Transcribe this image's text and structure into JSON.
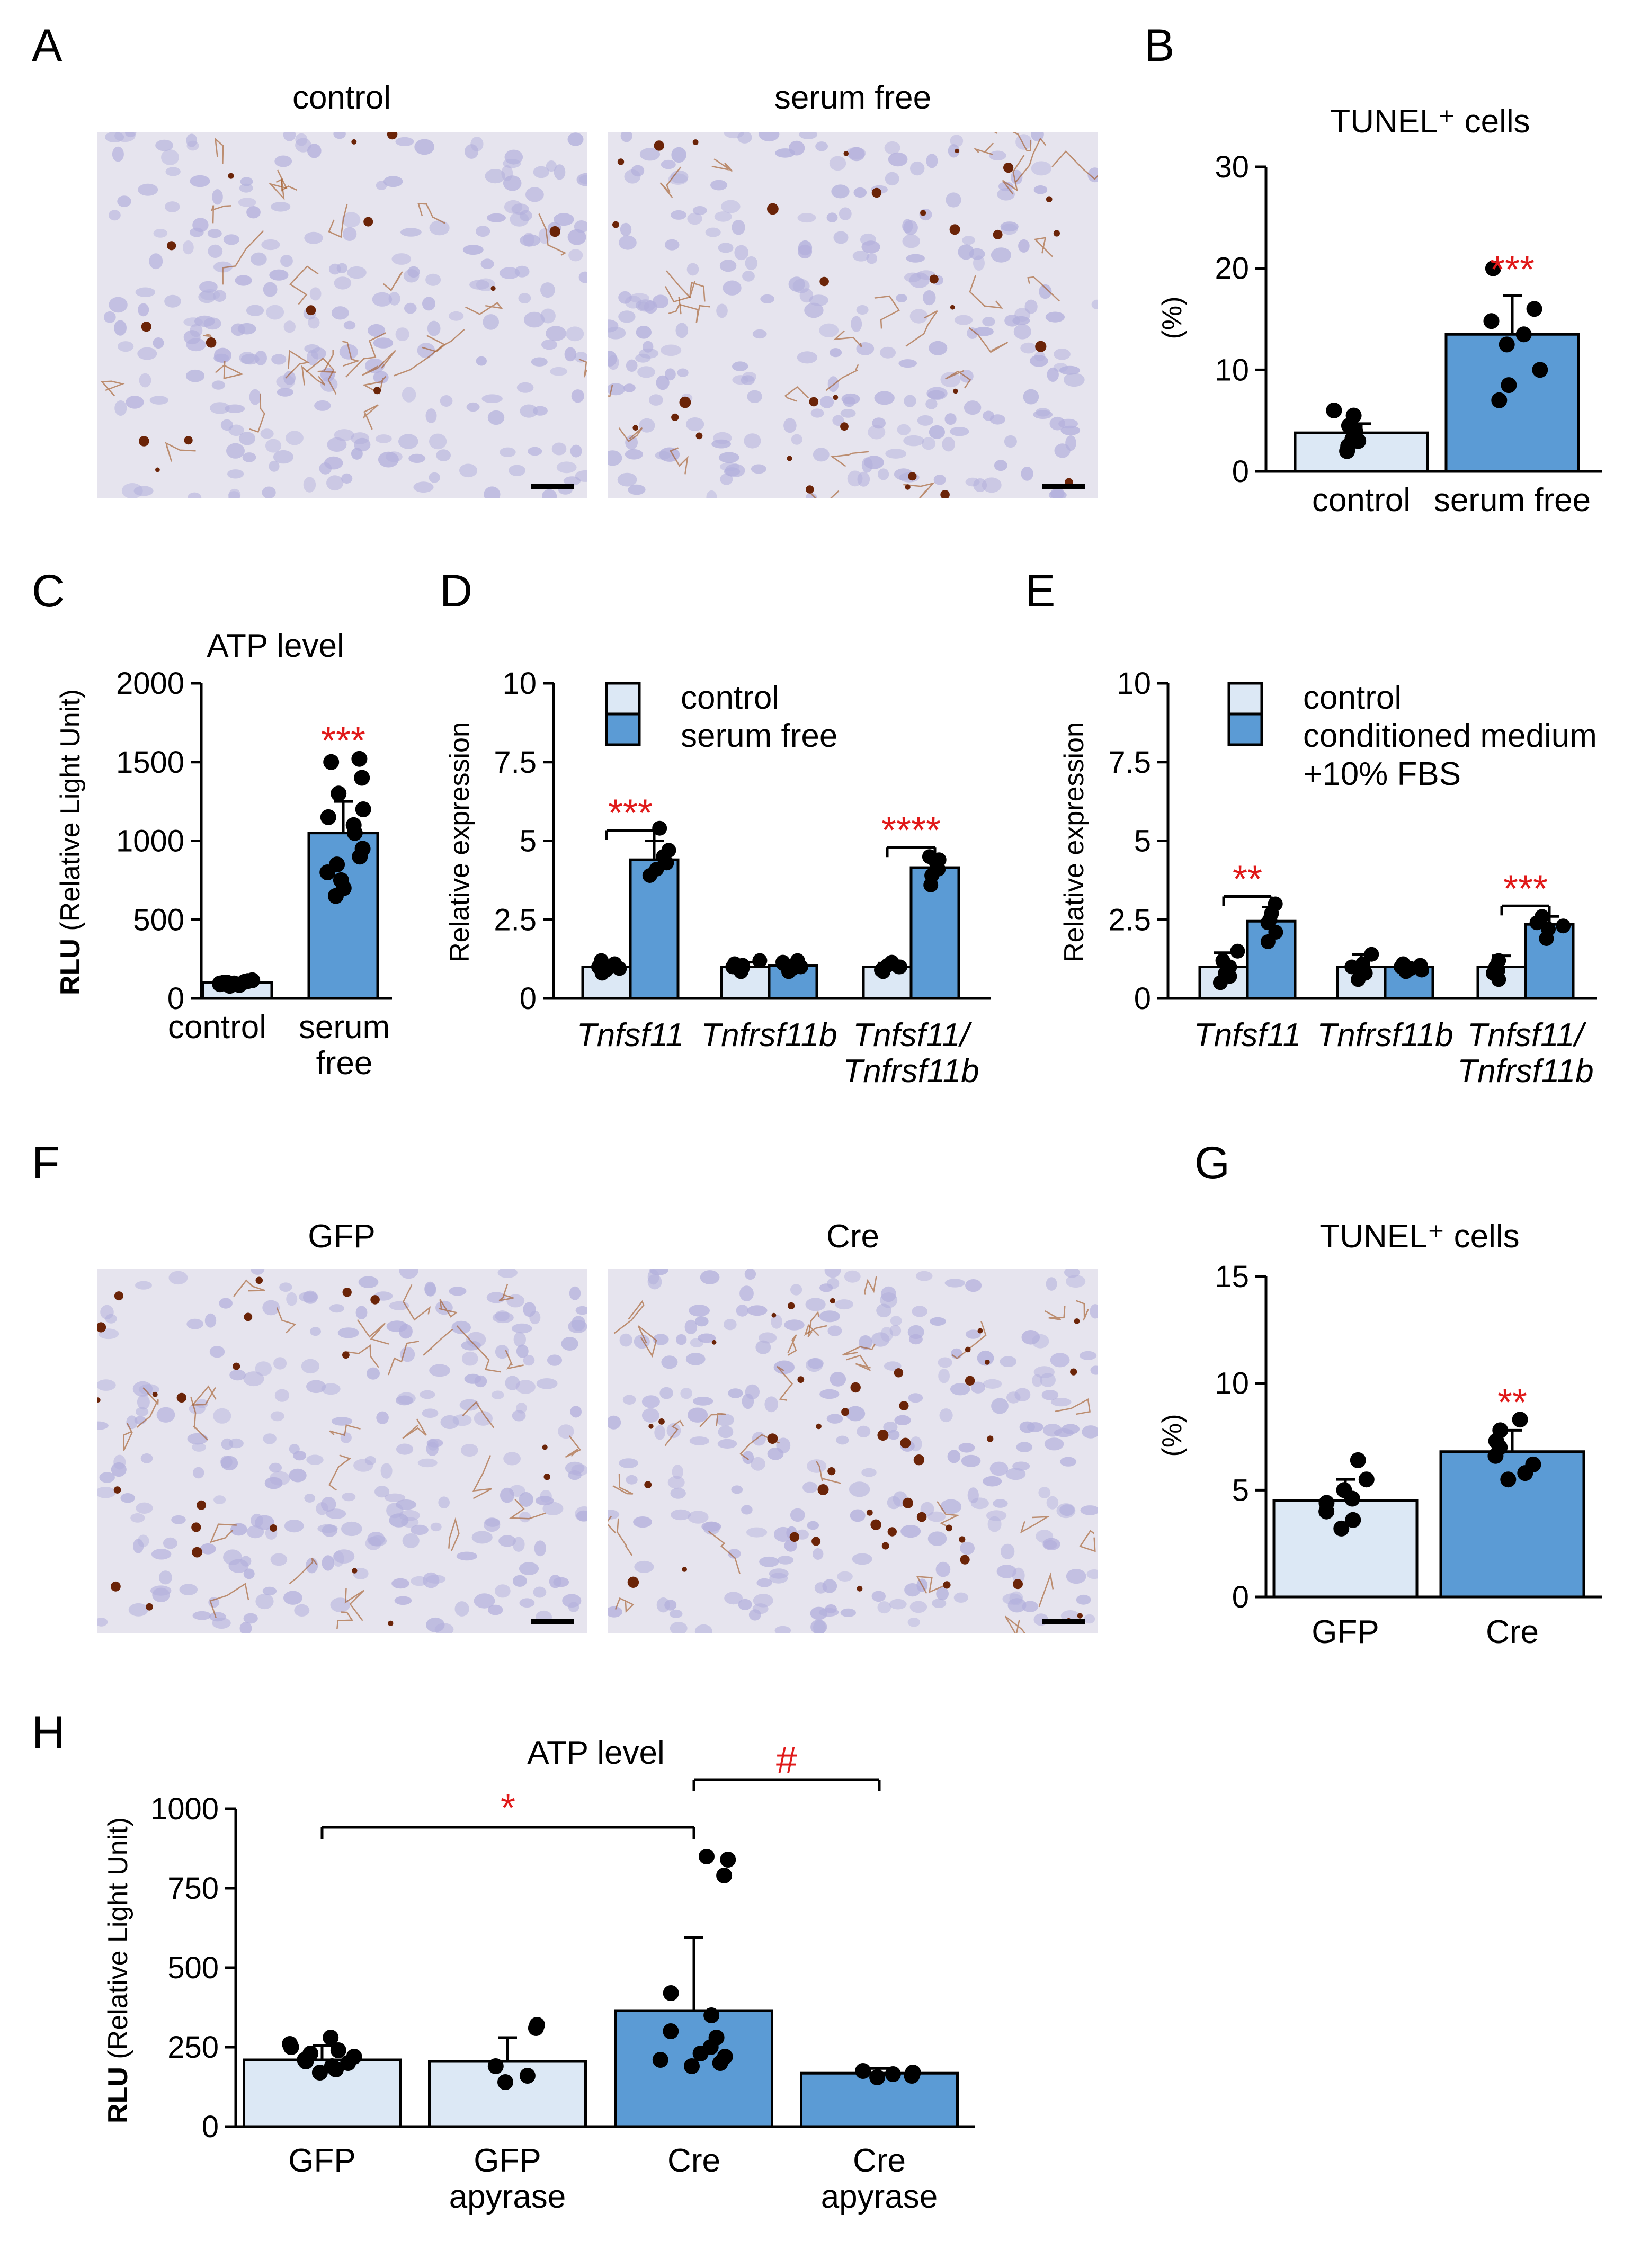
{
  "colors": {
    "control_fill": "#dce8f5",
    "treated_fill": "#5b9bd5",
    "bar_edge": "#000000",
    "dot": "#000000",
    "significance": "#e01a1a",
    "tissue_background": "#e6e4ee",
    "nucleus": "#b3b0dc",
    "stain_brown": "#a0531c",
    "stain_dark": "#6b2408"
  },
  "panels": {
    "A": {
      "letter": "A",
      "labels": [
        "control",
        "serum free"
      ]
    },
    "B": {
      "letter": "B"
    },
    "C": {
      "letter": "C"
    },
    "D": {
      "letter": "D"
    },
    "E": {
      "letter": "E"
    },
    "F": {
      "letter": "F",
      "labels": [
        "GFP",
        "Cre"
      ]
    },
    "G": {
      "letter": "G"
    },
    "H": {
      "letter": "H"
    }
  },
  "chart_data": [
    {
      "panel": "B",
      "type": "bar",
      "title": "TUNEL⁺ cells",
      "ylabel": "(%)",
      "ylim": [
        0,
        30
      ],
      "yticks": [
        "0",
        "10",
        "20",
        "30"
      ],
      "categories": [
        "control",
        "serum free"
      ],
      "values": [
        3.8,
        13.5
      ],
      "errors": [
        0.9,
        3.8
      ],
      "points": [
        [
          2.5,
          3.2,
          4.5,
          5.5,
          6.0,
          4.0,
          3.0,
          2.0
        ],
        [
          7.0,
          8.5,
          10.0,
          12.5,
          13.5,
          14.8,
          16.0,
          20.0
        ]
      ],
      "significance": "***"
    },
    {
      "panel": "C",
      "type": "bar",
      "title": "ATP level",
      "ylabel": [
        "RLU",
        " (Relative Light Unit)"
      ],
      "ylim": [
        0,
        2000
      ],
      "yticks": [
        "0",
        "500",
        "1000",
        "1500",
        "2000"
      ],
      "categories": [
        "control",
        "serum free"
      ],
      "category_lines": [
        [
          "control"
        ],
        [
          "serum",
          "free"
        ]
      ],
      "values": [
        100,
        1050
      ],
      "errors": [
        15,
        200
      ],
      "points": [
        [
          80,
          95,
          110,
          90,
          105,
          100,
          85,
          115,
          100,
          95
        ],
        [
          650,
          700,
          750,
          800,
          850,
          900,
          950,
          1050,
          1100,
          1150,
          1200,
          1300,
          1400,
          1500,
          1520
        ]
      ],
      "significance": "***"
    },
    {
      "panel": "D",
      "type": "bar",
      "ylabel": "Relative expression",
      "ylim": [
        0,
        10
      ],
      "yticks": [
        "0",
        "2.5",
        "5",
        "7.5",
        "10"
      ],
      "categories": [
        "Tnfsf11",
        "Tnfrsf11b",
        "Tnfsf11/Tnfrsf11b"
      ],
      "category_lines": [
        [
          "Tnfsf11"
        ],
        [
          "Tnfrsf11b"
        ],
        [
          "Tnfsf11/",
          "Tnfrsf11b"
        ]
      ],
      "legend": [
        "control",
        "serum free"
      ],
      "series": [
        {
          "name": "control",
          "values": [
            1.0,
            1.0,
            1.0
          ],
          "errors": [
            0.15,
            0.15,
            0.12
          ]
        },
        {
          "name": "serum free",
          "values": [
            4.4,
            1.05,
            4.15
          ],
          "errors": [
            0.6,
            0.15,
            0.3
          ]
        }
      ],
      "points": [
        [
          [
            0.8,
            0.9,
            1.0,
            1.1,
            1.2,
            0.95
          ],
          [
            3.9,
            4.1,
            4.3,
            4.5,
            4.7,
            5.4
          ]
        ],
        [
          [
            0.85,
            0.95,
            1.0,
            1.1,
            1.2,
            1.05
          ],
          [
            0.85,
            0.95,
            1.0,
            1.1,
            1.2,
            1.15
          ]
        ],
        [
          [
            0.85,
            0.9,
            1.0,
            1.05,
            1.15,
            1.0
          ],
          [
            3.6,
            3.9,
            4.1,
            4.3,
            4.5,
            4.4
          ]
        ]
      ],
      "significance": [
        "***",
        "",
        "****"
      ]
    },
    {
      "panel": "E",
      "type": "bar",
      "ylabel": "Relative expression",
      "ylim": [
        0,
        10
      ],
      "yticks": [
        "0",
        "2.5",
        "5",
        "7.5",
        "10"
      ],
      "categories": [
        "Tnfsf11",
        "Tnfrsf11b",
        "Tnfsf11/Tnfrsf11b"
      ],
      "category_lines": [
        [
          "Tnfsf11"
        ],
        [
          "Tnfrsf11b"
        ],
        [
          "Tnfsf11/",
          "Tnfrsf11b"
        ]
      ],
      "legend": [
        "control",
        "conditioned medium",
        "+10% FBS"
      ],
      "series": [
        {
          "name": "control",
          "values": [
            1.0,
            1.0,
            1.0
          ],
          "errors": [
            0.45,
            0.4,
            0.35
          ]
        },
        {
          "name": "conditioned medium +10% FBS",
          "values": [
            2.45,
            1.0,
            2.35
          ],
          "errors": [
            0.45,
            0.12,
            0.25
          ]
        }
      ],
      "points": [
        [
          [
            0.5,
            0.8,
            1.0,
            1.2,
            1.5,
            0.7
          ],
          [
            1.8,
            2.1,
            2.4,
            2.7,
            3.0,
            2.5
          ]
        ],
        [
          [
            0.6,
            0.9,
            1.1,
            1.4,
            0.8,
            1.0
          ],
          [
            0.85,
            0.95,
            1.0,
            1.05,
            1.1,
            0.9
          ]
        ],
        [
          [
            0.6,
            0.9,
            1.2,
            0.8,
            1.0
          ],
          [
            1.9,
            2.2,
            2.4,
            2.6,
            2.3
          ]
        ]
      ],
      "significance": [
        "**",
        "",
        "***"
      ]
    },
    {
      "panel": "G",
      "type": "bar",
      "title": "TUNEL⁺ cells",
      "ylabel": "(%)",
      "ylim": [
        0,
        15
      ],
      "yticks": [
        "0",
        "5",
        "10",
        "15"
      ],
      "categories": [
        "GFP",
        "Cre"
      ],
      "values": [
        4.5,
        6.8
      ],
      "errors": [
        1.0,
        1.0
      ],
      "points": [
        [
          3.2,
          3.6,
          4.0,
          4.4,
          4.6,
          5.0,
          5.5,
          6.4
        ],
        [
          5.5,
          5.8,
          6.2,
          6.6,
          7.0,
          7.3,
          7.8,
          8.3
        ]
      ],
      "significance": "**"
    },
    {
      "panel": "H",
      "type": "bar",
      "title": "ATP level",
      "ylabel": [
        "RLU",
        " (Relative Light Unit)"
      ],
      "ylim": [
        0,
        1000
      ],
      "yticks": [
        "0",
        "250",
        "500",
        "750",
        "1000"
      ],
      "categories": [
        "GFP",
        "GFP apyrase",
        "Cre",
        "Cre apyrase"
      ],
      "category_lines": [
        [
          "GFP"
        ],
        [
          "GFP",
          "apyrase"
        ],
        [
          "Cre"
        ],
        [
          "Cre",
          "apyrase"
        ]
      ],
      "values": [
        210,
        205,
        365,
        168
      ],
      "errors": [
        45,
        75,
        230,
        15
      ],
      "points": [
        [
          170,
          180,
          190,
          200,
          205,
          210,
          220,
          230,
          240,
          250,
          260,
          280
        ],
        [
          140,
          160,
          190,
          310,
          320
        ],
        [
          190,
          200,
          210,
          220,
          230,
          250,
          280,
          300,
          350,
          420,
          790,
          840,
          850
        ],
        [
          155,
          160,
          165,
          170,
          175
        ]
      ],
      "significance": [
        {
          "text": "*",
          "from": "GFP",
          "to": "Cre"
        },
        {
          "text": "#",
          "from": "Cre",
          "to": "Cre apyrase"
        }
      ]
    }
  ]
}
